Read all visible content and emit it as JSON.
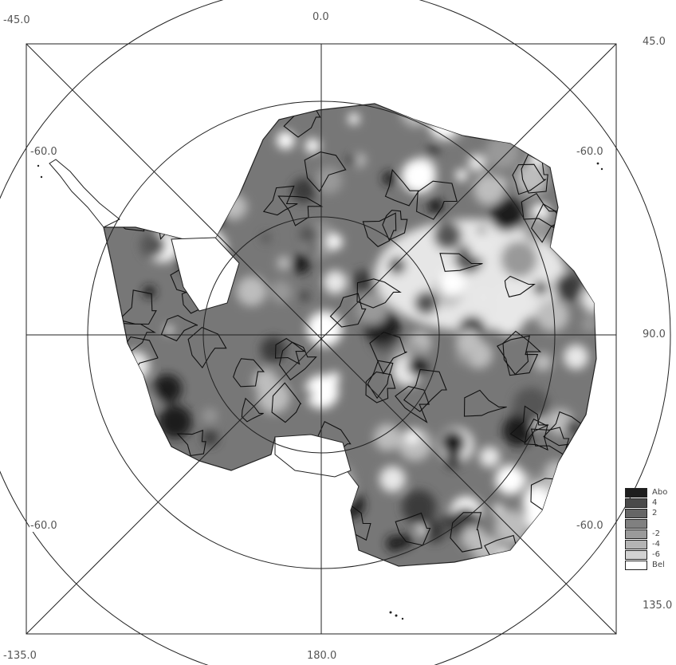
{
  "outer_labels": {
    "top_left": "-45.0",
    "top_center": "0.0",
    "top_right": "45.0",
    "right_center": "90.0",
    "bottom_right": "135.0",
    "bottom_center": "180.0",
    "bottom_left": "-135.0"
  },
  "inner_labels": {
    "upper_left": "-60.0",
    "upper_right": "-60.0",
    "lower_left": "-60.0",
    "lower_right": "-60.0"
  },
  "legend": {
    "items": [
      {
        "label": "Abo",
        "color": "#1e1e1e"
      },
      {
        "label": "4",
        "color": "#4a4a4a"
      },
      {
        "label": "2",
        "color": "#666666"
      },
      {
        "label": "",
        "color": "#808080"
      },
      {
        "label": "-2",
        "color": "#9a9a9a"
      },
      {
        "label": "-4",
        "color": "#b4b4b4"
      },
      {
        "label": "-6",
        "color": "#d2d2d2"
      },
      {
        "label": "Bel",
        "color": "#ffffff"
      }
    ]
  },
  "colors": {
    "land_base": "#777777",
    "dark_blob": "#2a2a2a",
    "light_blob": "#e6e6e6",
    "grid_line": "#222222"
  }
}
